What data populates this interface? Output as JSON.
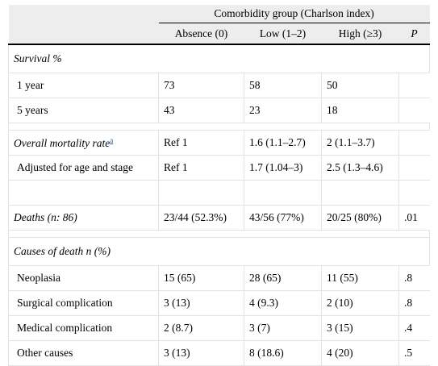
{
  "header": {
    "group_title": "Comorbidity group (Charlson index)",
    "columns": [
      "Absence (0)",
      "Low (1–2)",
      "High (≥3)",
      "P"
    ]
  },
  "survival": {
    "title": "Survival %",
    "rows": [
      {
        "label": "1 year",
        "values": [
          "73",
          "58",
          "50",
          ""
        ]
      },
      {
        "label": "5 years",
        "values": [
          "43",
          "23",
          "18",
          ""
        ]
      }
    ]
  },
  "mortality": {
    "label": "Overall mortality rate",
    "footnote": "a",
    "values": [
      "Ref 1",
      "1.6 (1.1–2.7)",
      "2 (1.1–3.7)",
      ""
    ],
    "adjusted": {
      "label": "Adjusted for age and stage",
      "values": [
        "Ref 1",
        "1.7 (1.04–3)",
        "2.5 (1.3–4.6)",
        ""
      ]
    }
  },
  "deaths": {
    "label_prefix": "Deaths (",
    "label_n": "n",
    "label_suffix": ": 86)",
    "values": [
      "23/44 (52.3%)",
      "43/56 (77%)",
      "20/25 (80%)",
      ".01"
    ]
  },
  "causes": {
    "title": "Causes of death n (%)",
    "rows": [
      {
        "label": "Neoplasia",
        "values": [
          "15 (65)",
          "28 (65)",
          "11 (55)",
          ".8"
        ]
      },
      {
        "label": "Surgical complication",
        "values": [
          "3 (13)",
          "4 (9.3)",
          "2 (10)",
          ".8"
        ]
      },
      {
        "label": "Medical complication",
        "values": [
          "2 (8.7)",
          "3 (7)",
          "3 (15)",
          ".4"
        ]
      },
      {
        "label": "Other causes",
        "values": [
          "3 (13)",
          "8 (18.6)",
          "4 (20)",
          ".5"
        ]
      }
    ]
  }
}
